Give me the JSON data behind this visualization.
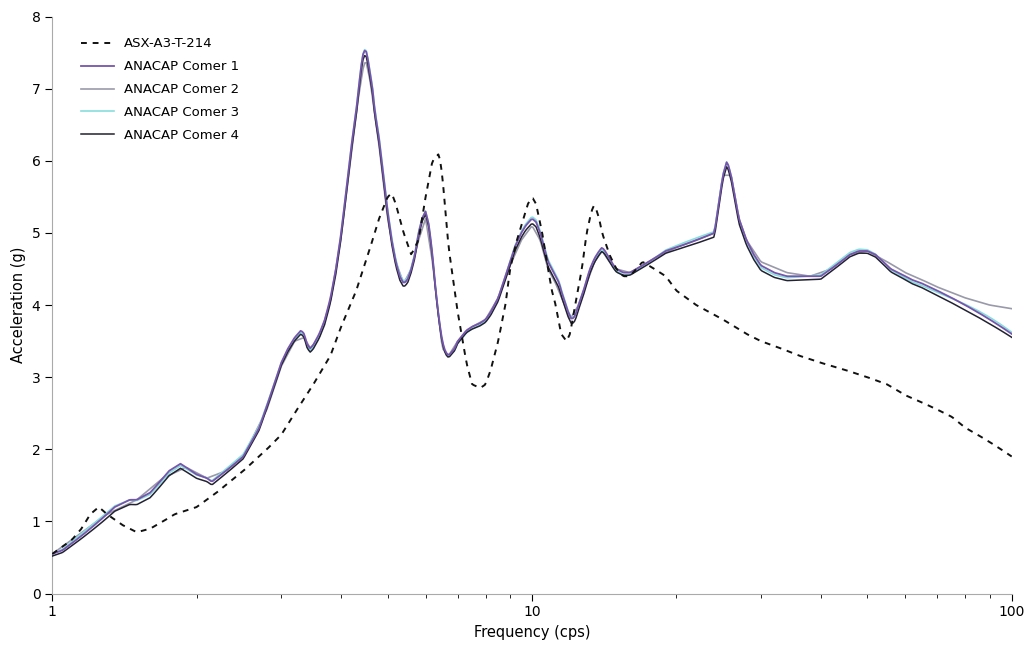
{
  "xlabel": "Frequency (cps)",
  "ylabel": "Acceleration (g)",
  "xlim": [
    1,
    100
  ],
  "ylim": [
    0,
    8
  ],
  "yticks": [
    0,
    1,
    2,
    3,
    4,
    5,
    6,
    7,
    8
  ],
  "legend_labels": [
    "ASX-A3-T-214",
    "ANACAP Comer 1",
    "ANACAP Comer 2",
    "ANACAP Comer 3",
    "ANACAP Comer 4"
  ],
  "colors": {
    "ASX": "#111111",
    "corner1": "#7755aa",
    "corner2": "#9999aa",
    "corner3": "#88dddd",
    "corner4": "#222233"
  },
  "background_color": "#ffffff"
}
